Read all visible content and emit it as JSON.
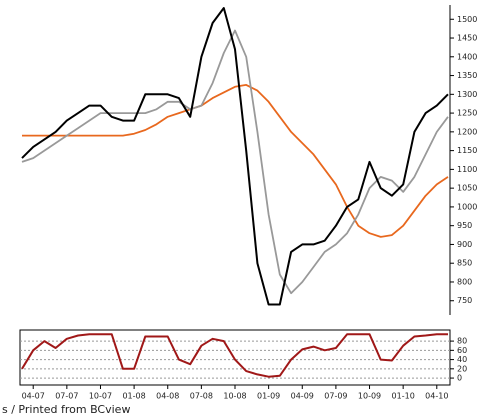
{
  "chart_data": [
    {
      "type": "line",
      "ylim": [
        712,
        1538
      ],
      "yticks": [
        750,
        800,
        850,
        900,
        950,
        1000,
        1050,
        1100,
        1150,
        1200,
        1250,
        1300,
        1350,
        1400,
        1450,
        1500
      ],
      "series": [
        {
          "color": "#e8681e",
          "values": [
            1190,
            1190,
            1190,
            1190,
            1190,
            1190,
            1190,
            1190,
            1190,
            1190,
            1195,
            1205,
            1220,
            1240,
            1250,
            1260,
            1270,
            1290,
            1305,
            1320,
            1325,
            1310,
            1280,
            1240,
            1200,
            1170,
            1140,
            1100,
            1060,
            1000,
            950,
            930,
            920,
            925,
            950,
            990,
            1030,
            1060,
            1080
          ]
        },
        {
          "color": "#999999",
          "values": [
            1120,
            1130,
            1150,
            1170,
            1190,
            1210,
            1230,
            1250,
            1250,
            1250,
            1250,
            1250,
            1260,
            1280,
            1280,
            1260,
            1270,
            1330,
            1410,
            1470,
            1400,
            1200,
            980,
            820,
            770,
            800,
            840,
            880,
            900,
            930,
            980,
            1050,
            1080,
            1070,
            1040,
            1080,
            1140,
            1200,
            1240
          ]
        },
        {
          "color": "#000000",
          "values": [
            1130,
            1160,
            1180,
            1200,
            1230,
            1250,
            1270,
            1270,
            1240,
            1230,
            1230,
            1300,
            1300,
            1300,
            1290,
            1240,
            1400,
            1490,
            1530,
            1420,
            1150,
            850,
            740,
            740,
            880,
            900,
            900,
            910,
            950,
            1000,
            1020,
            1120,
            1050,
            1030,
            1060,
            1200,
            1250,
            1270,
            1300
          ]
        }
      ]
    },
    {
      "type": "line",
      "categories": [
        null,
        "04-07",
        null,
        null,
        "07-07",
        null,
        null,
        "10-07",
        null,
        null,
        "01-08",
        null,
        null,
        "04-08",
        null,
        null,
        "07-08",
        null,
        null,
        "10-08",
        null,
        null,
        "01-09",
        null,
        null,
        "04-09",
        null,
        null,
        "07-09",
        null,
        null,
        "10-09",
        null,
        null,
        "01-10",
        null,
        null,
        "04-10",
        null
      ],
      "ylim": [
        -15,
        104
      ],
      "yticks": [
        0,
        20,
        40,
        60,
        80
      ],
      "grid": true,
      "series": [
        {
          "color": "#a01818",
          "values": [
            20,
            60,
            80,
            65,
            85,
            92,
            95,
            95,
            95,
            20,
            20,
            90,
            90,
            90,
            40,
            30,
            70,
            85,
            80,
            40,
            15,
            8,
            3,
            5,
            40,
            62,
            68,
            60,
            65,
            95,
            95,
            95,
            40,
            38,
            70,
            90,
            92,
            95,
            95
          ]
        }
      ]
    }
  ],
  "footer": "s / Printed from BCview"
}
